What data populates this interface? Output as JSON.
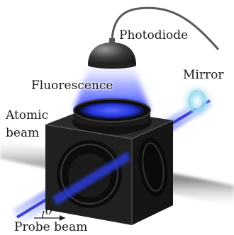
{
  "labels": {
    "photodiode": "Photodiode",
    "mirror": "Mirror",
    "fluorescence": "Fluorescence",
    "atomic_beam": "Atomic\nbeam",
    "theta": "θ",
    "probe_beam": "Probe beam"
  },
  "colors": {
    "background": "#ffffff",
    "probe_beam": "#2a3bd6",
    "fluorescence_glow": "#3b4cff",
    "atomic_beam": "#9a9a9a",
    "cube_body": "#1c1c1c",
    "mirror_glow": "#8fd6ee"
  }
}
